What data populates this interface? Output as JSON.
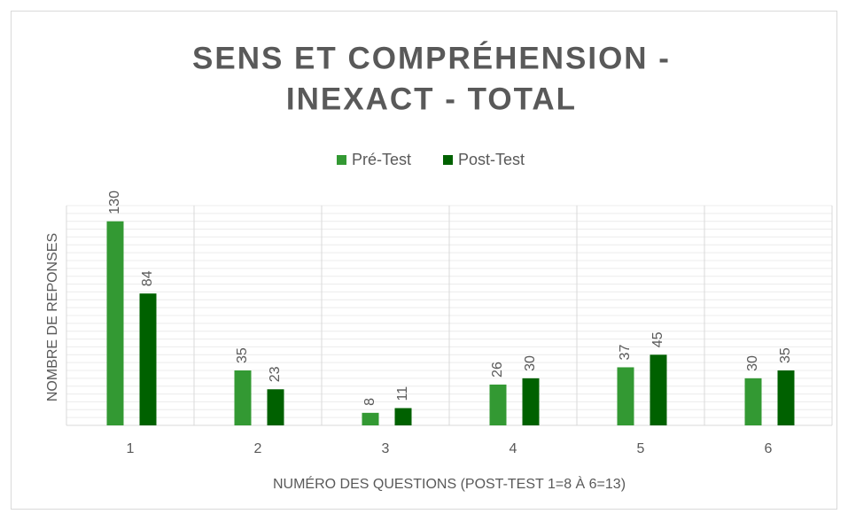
{
  "chart_data": {
    "type": "bar",
    "title": [
      "SENS ET COMPRÉHENSION -",
      "INEXACT - TOTAL"
    ],
    "x_label": "NUMÉRO DES QUESTIONS (POST-TEST 1=8 À 6=13)",
    "y_label": "NOMBRE DE REPONSES",
    "categories": [
      "1",
      "2",
      "3",
      "4",
      "5",
      "6"
    ],
    "series": [
      {
        "name": "Pré-Test",
        "color": "#339933",
        "values": [
          130,
          35,
          8,
          26,
          37,
          30
        ]
      },
      {
        "name": "Post-Test",
        "color": "#006100",
        "values": [
          84,
          23,
          11,
          30,
          45,
          35
        ]
      }
    ],
    "ylim": [
      0,
      140
    ],
    "yticks": [
      0,
      5,
      10,
      15,
      20,
      25,
      30,
      35,
      40,
      45,
      50,
      55,
      60,
      65,
      70,
      75,
      80,
      85,
      90,
      95,
      100,
      105,
      110,
      115,
      120,
      125,
      130,
      135,
      140
    ],
    "grid": true,
    "legend": "top"
  }
}
